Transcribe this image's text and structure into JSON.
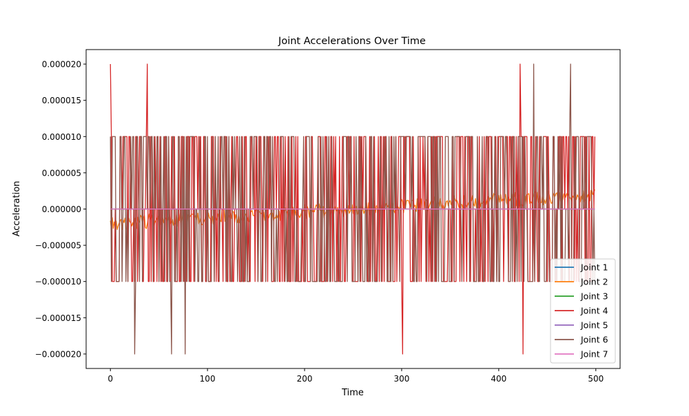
{
  "chart_data": {
    "type": "line",
    "title": "Joint Accelerations Over Time",
    "xlabel": "Time",
    "ylabel": "Acceleration",
    "xlim": [
      -25,
      525
    ],
    "ylim": [
      -2.2e-05,
      2.2e-05
    ],
    "xticks": [
      0,
      100,
      200,
      300,
      400,
      500
    ],
    "xtick_labels": [
      "0",
      "100",
      "200",
      "300",
      "400",
      "500"
    ],
    "yticks": [
      -2e-05,
      -1.5e-05,
      -1e-05,
      -5e-06,
      0,
      5e-06,
      1e-05,
      1.5e-05,
      2e-05
    ],
    "ytick_labels": [
      "−0.000020",
      "−0.000015",
      "−0.000010",
      "−0.000005",
      "0.000000",
      "0.000005",
      "0.000010",
      "0.000015",
      "0.000020"
    ],
    "grid": false,
    "legend_position": "lower-right",
    "x_range": [
      0,
      499
    ],
    "series": [
      {
        "name": "Joint 1",
        "color": "#1f77b4",
        "pattern": "constant",
        "level": 0
      },
      {
        "name": "Joint 2",
        "color": "#ff7f0e",
        "pattern": "drift",
        "start": -2e-06,
        "end": 2e-06,
        "amplitude": 1e-06
      },
      {
        "name": "Joint 3",
        "color": "#2ca02c",
        "pattern": "constant",
        "level": 0
      },
      {
        "name": "Joint 4",
        "color": "#d62728",
        "pattern": "quantized",
        "levels": [
          -1e-05,
          0,
          1e-05
        ],
        "spikes": [
          {
            "x": 0,
            "value": 2e-05
          },
          {
            "x": 38,
            "value": 2e-05
          },
          {
            "x": 301,
            "value": -2e-05
          },
          {
            "x": 422,
            "value": 2e-05
          },
          {
            "x": 425,
            "value": -2e-05
          }
        ]
      },
      {
        "name": "Joint 5",
        "color": "#9467bd",
        "pattern": "constant",
        "level": 0
      },
      {
        "name": "Joint 6",
        "color": "#8c564b",
        "pattern": "quantized",
        "levels": [
          -1e-05,
          0,
          1e-05
        ],
        "spikes": [
          {
            "x": 25,
            "value": -2e-05
          },
          {
            "x": 63,
            "value": -2e-05
          },
          {
            "x": 77,
            "value": -2e-05
          },
          {
            "x": 436,
            "value": 2e-05
          },
          {
            "x": 474,
            "value": 2e-05
          }
        ]
      },
      {
        "name": "Joint 7",
        "color": "#e377c2",
        "pattern": "constant",
        "level": 0
      }
    ]
  }
}
